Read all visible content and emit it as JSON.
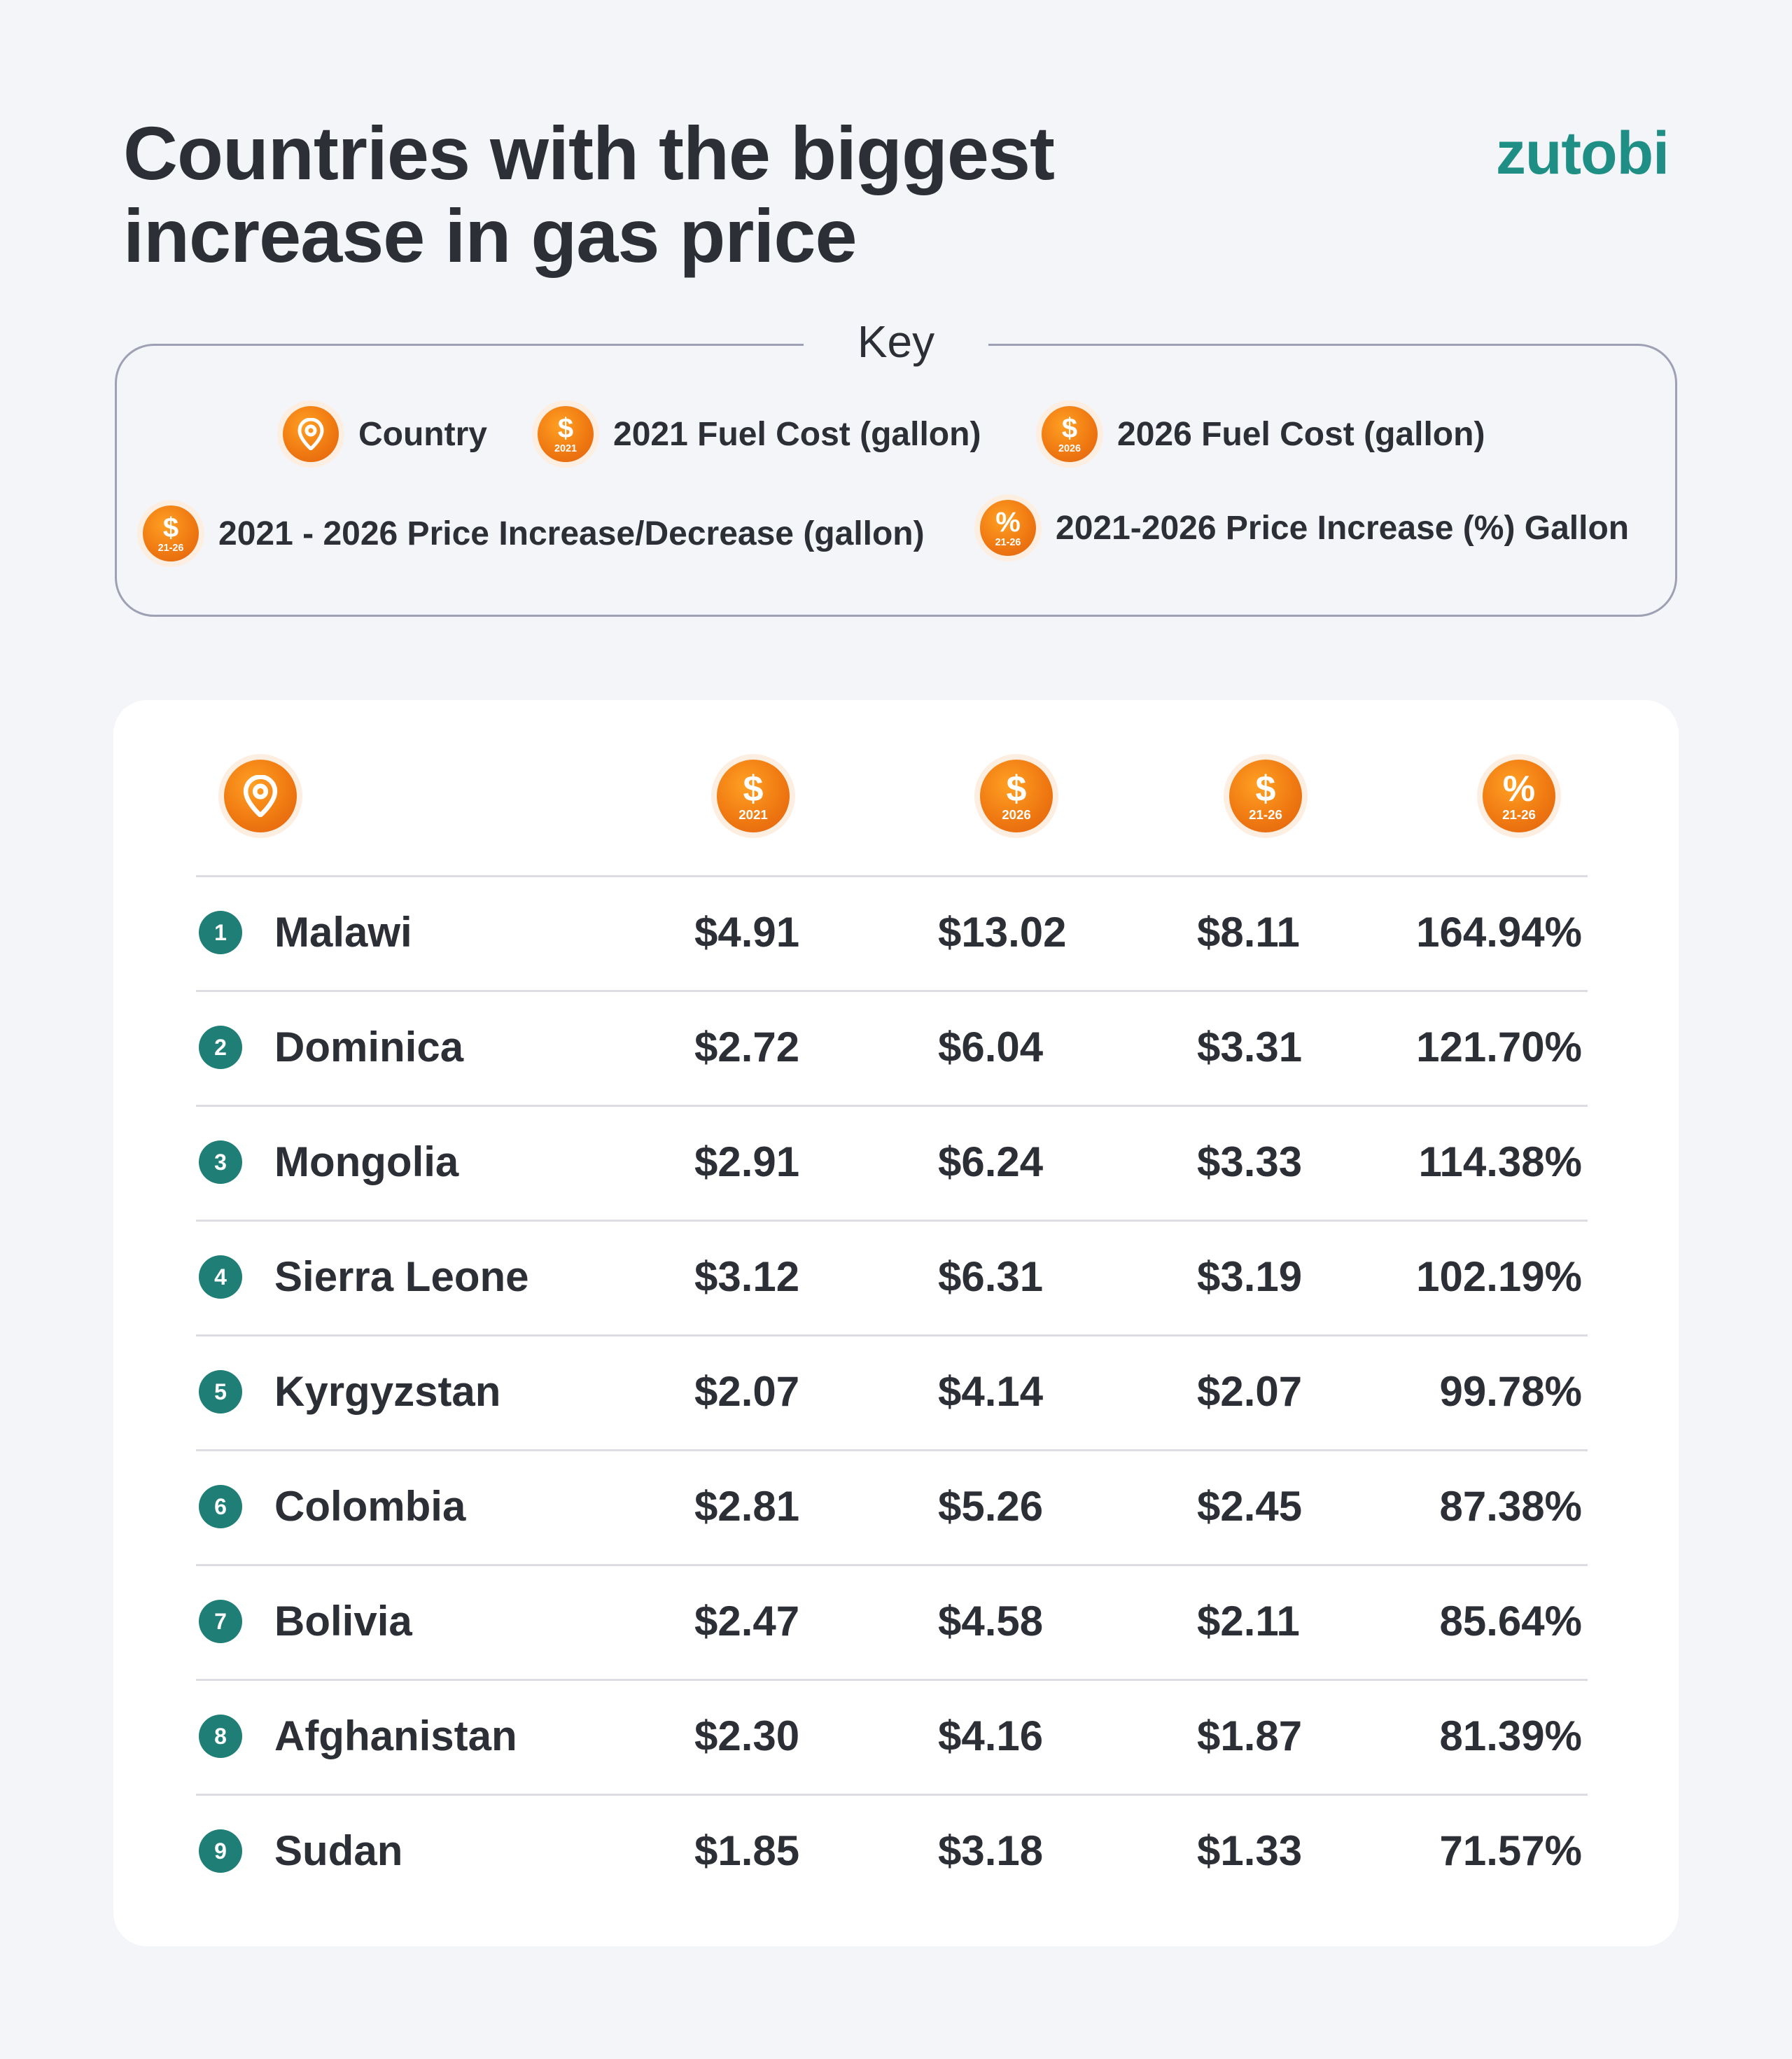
{
  "title_line1": "Countries with the biggest",
  "title_line2": "increase in gas price",
  "logo": "zutobi",
  "key": {
    "title": "Key",
    "items": [
      {
        "icon": "location-pin-icon",
        "label": "Country"
      },
      {
        "icon": "dollar-coin-icon",
        "sub": "2021",
        "label": "2021 Fuel Cost (gallon)"
      },
      {
        "icon": "dollar-coin-icon",
        "sub": "2026",
        "label": "2026 Fuel Cost (gallon)"
      },
      {
        "icon": "dollar-coin-icon",
        "sub": "21-26",
        "label": "2021 - 2026 Price Increase/Decrease (gallon)"
      },
      {
        "icon": "percent-coin-icon",
        "sub": "21-26",
        "label": "2021-2026 Price Increase (%) Gallon"
      }
    ]
  },
  "colors": {
    "accent_orange": "#f07a12",
    "rank_teal": "#1f7f77",
    "logo_teal": "#1f8f86",
    "text_dark": "#2d2f36"
  },
  "chart_data": {
    "type": "table",
    "columns": [
      {
        "icon": "location-pin-icon",
        "sub": ""
      },
      {
        "icon": "dollar-coin-icon",
        "sub": "2021"
      },
      {
        "icon": "dollar-coin-icon",
        "sub": "2026"
      },
      {
        "icon": "dollar-coin-icon",
        "sub": "21-26"
      },
      {
        "icon": "percent-coin-icon",
        "sub": "21-26"
      }
    ],
    "rows": [
      {
        "rank": "1",
        "country": "Malawi",
        "cost_2021": "$4.91",
        "cost_2026": "$13.02",
        "increase": "$8.11",
        "percent": "164.94%"
      },
      {
        "rank": "2",
        "country": "Dominica",
        "cost_2021": "$2.72",
        "cost_2026": "$6.04",
        "increase": "$3.31",
        "percent": "121.70%"
      },
      {
        "rank": "3",
        "country": "Mongolia",
        "cost_2021": "$2.91",
        "cost_2026": "$6.24",
        "increase": "$3.33",
        "percent": "114.38%"
      },
      {
        "rank": "4",
        "country": "Sierra Leone",
        "cost_2021": "$3.12",
        "cost_2026": "$6.31",
        "increase": "$3.19",
        "percent": "102.19%"
      },
      {
        "rank": "5",
        "country": "Kyrgyzstan",
        "cost_2021": "$2.07",
        "cost_2026": "$4.14",
        "increase": "$2.07",
        "percent": "99.78%"
      },
      {
        "rank": "6",
        "country": "Colombia",
        "cost_2021": "$2.81",
        "cost_2026": "$5.26",
        "increase": "$2.45",
        "percent": "87.38%"
      },
      {
        "rank": "7",
        "country": "Bolivia",
        "cost_2021": "$2.47",
        "cost_2026": "$4.58",
        "increase": "$2.11",
        "percent": "85.64%"
      },
      {
        "rank": "8",
        "country": "Afghanistan",
        "cost_2021": "$2.30",
        "cost_2026": "$4.16",
        "increase": "$1.87",
        "percent": "81.39%"
      },
      {
        "rank": "9",
        "country": "Sudan",
        "cost_2021": "$1.85",
        "cost_2026": "$3.18",
        "increase": "$1.33",
        "percent": "71.57%"
      }
    ]
  }
}
